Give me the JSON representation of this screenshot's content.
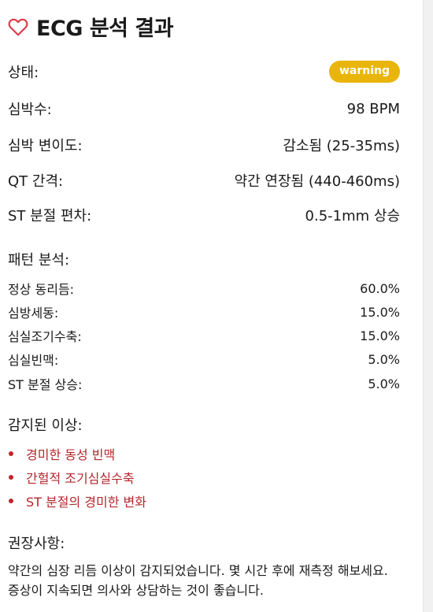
{
  "header": {
    "title": "ECG 분석 결과",
    "icon": "heart-icon"
  },
  "summary": [
    {
      "label": "상태:",
      "value": "warning",
      "type": "badge"
    },
    {
      "label": "심박수:",
      "value": "98 BPM"
    },
    {
      "label": "심박 변이도:",
      "value": "감소됨 (25-35ms)"
    },
    {
      "label": "QT 간격:",
      "value": "약간 연장됨 (440-460ms)"
    },
    {
      "label": "ST 분절 편차:",
      "value": "0.5-1mm 상승"
    }
  ],
  "patterns": {
    "title": "패턴 분석:",
    "items": [
      {
        "label": "정상 동리듬:",
        "value": "60.0%"
      },
      {
        "label": "심방세동:",
        "value": "15.0%"
      },
      {
        "label": "심실조기수축:",
        "value": "15.0%"
      },
      {
        "label": "심실빈맥:",
        "value": "5.0%"
      },
      {
        "label": "ST 분절 상승:",
        "value": "5.0%"
      }
    ]
  },
  "anomalies": {
    "title": "감지된 이상:",
    "items": [
      "경미한 동성 빈맥",
      "간헐적 조기심실수축",
      "ST 분절의 경미한 변화"
    ]
  },
  "recommendations": {
    "title": "권장사항:",
    "text": "약간의 심장 리듬 이상이 감지되었습니다. 몇 시간 후에 재측정 해보세요. 증상이 지속되면 의사와 상담하는 것이 좋습니다."
  },
  "colors": {
    "badge": "#e9b50b",
    "heart": "#d93a48",
    "anomaly": "#b3262b"
  }
}
